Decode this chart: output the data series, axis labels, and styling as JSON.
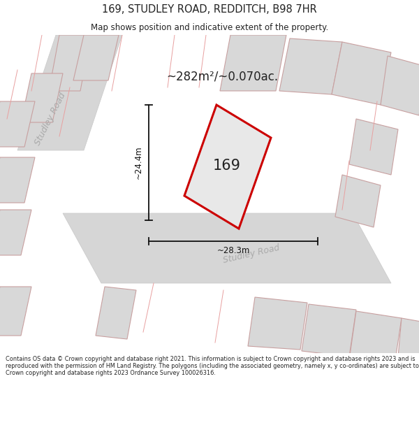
{
  "title": "169, STUDLEY ROAD, REDDITCH, B98 7HR",
  "subtitle": "Map shows position and indicative extent of the property.",
  "area_text": "~282m²/~0.070ac.",
  "property_number": "169",
  "dim_vertical": "~24.4m",
  "dim_horizontal": "~28.3m",
  "road_label_top": "Studley Road",
  "road_label_bottom": "Studley Road",
  "footer_text": "Contains OS data © Crown copyright and database right 2021. This information is subject to Crown copyright and database rights 2023 and is reproduced with the permission of HM Land Registry. The polygons (including the associated geometry, namely x, y co-ordinates) are subject to Crown copyright and database rights 2023 Ordnance Survey 100026316.",
  "map_bg": "#f2f2f2",
  "property_fill": "#e8e8e8",
  "property_edge": "#cc0000",
  "road_line_color": "#e8a0a0",
  "building_fill": "#d8d8d8",
  "building_edge": "#c8a0a0",
  "dim_color": "#111111",
  "text_color": "#222222",
  "road_text_color": "#aaaaaa"
}
